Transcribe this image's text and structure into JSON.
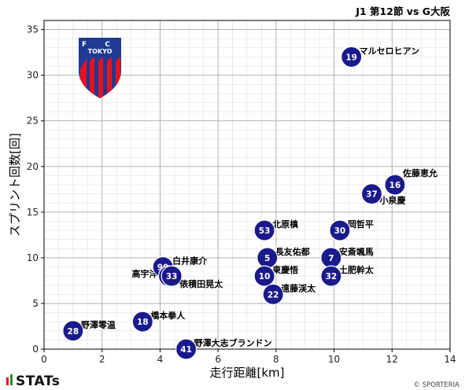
{
  "chart_data": {
    "type": "scatter",
    "title": "J1 第12節 vs G大阪",
    "xlabel": "走行距離[km]",
    "ylabel": "スプリント回数[回]",
    "xlim": [
      0,
      14
    ],
    "ylim": [
      0,
      36
    ],
    "x_ticks": [
      0,
      2,
      4,
      6,
      8,
      10,
      12,
      14
    ],
    "y_ticks": [
      0,
      5,
      10,
      15,
      20,
      25,
      30,
      35
    ],
    "grid": true,
    "points": [
      {
        "number": "19",
        "name": "マルセロヒアン",
        "x": 10.6,
        "y": 32
      },
      {
        "number": "16",
        "name": "佐藤恵允",
        "x": 12.1,
        "y": 18
      },
      {
        "number": "37",
        "name": "小泉慶",
        "x": 11.3,
        "y": 17
      },
      {
        "number": "53",
        "name": "北原槙",
        "x": 7.6,
        "y": 13
      },
      {
        "number": "30",
        "name": "岡哲平",
        "x": 10.2,
        "y": 13
      },
      {
        "number": "5",
        "name": "長友佑都",
        "x": 7.7,
        "y": 10
      },
      {
        "number": "7",
        "name": "安斎颯馬",
        "x": 9.9,
        "y": 10
      },
      {
        "number": "10",
        "name": "東慶悟",
        "x": 7.6,
        "y": 8
      },
      {
        "number": "32",
        "name": "土肥幹太",
        "x": 9.9,
        "y": 8
      },
      {
        "number": "22",
        "name": "遠藤渓太",
        "x": 7.9,
        "y": 6
      },
      {
        "number": "99",
        "name": "白井康介",
        "x": 4.1,
        "y": 9
      },
      {
        "number": "33",
        "name": "俵積田晃太",
        "x": 4.4,
        "y": 8
      },
      {
        "number": "8",
        "name": "高宇洋",
        "x": 4.3,
        "y": 8
      },
      {
        "number": "18",
        "name": "橋本拳人",
        "x": 3.4,
        "y": 3
      },
      {
        "number": "28",
        "name": "野澤零温",
        "x": 1.0,
        "y": 2
      },
      {
        "number": "41",
        "name": "野澤大志ブランドン",
        "x": 4.9,
        "y": 0
      }
    ]
  },
  "logo": {
    "top_text": "F C",
    "word": "TOKYO"
  },
  "footer": {
    "brand": "STATs",
    "copyright": "© SPORTERIA"
  },
  "colors": {
    "point": "#1a1a8c",
    "logo_blue": "#1f3a93",
    "logo_red": "#e8121f"
  }
}
